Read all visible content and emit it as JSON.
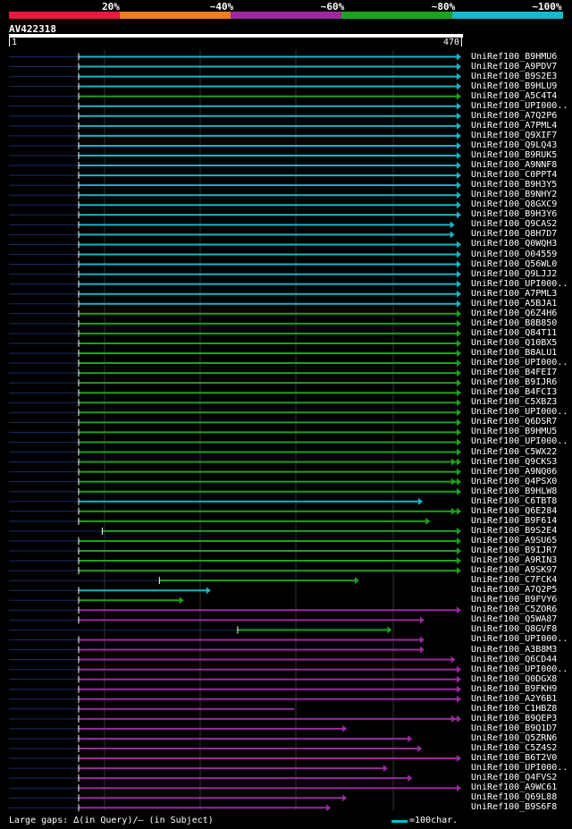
{
  "legend": [
    {
      "label": "20%",
      "color": "#e8193c"
    },
    {
      "label": "~40%",
      "color": "#f07d1e"
    },
    {
      "label": "~60%",
      "color": "#9b2aa0"
    },
    {
      "label": "~80%",
      "color": "#1ea11e"
    },
    {
      "label": "~100%",
      "color": "#18b8c8"
    }
  ],
  "query": {
    "id": "AV422318",
    "start": "1",
    "end": "470",
    "length": 470
  },
  "colors": {
    "cyan": "#19b5c6",
    "green": "#1ea11e",
    "purple": "#9b2aa0",
    "dash": "#1c2a66",
    "grid": "#333333"
  },
  "hits": [
    {
      "name": "UniRef100_B9HMU6",
      "c": "cyan",
      "s": 1,
      "e": 470,
      "arrow": 1,
      "gaps": []
    },
    {
      "name": "UniRef100_A9PDV7",
      "c": "cyan",
      "s": 1,
      "e": 470,
      "arrow": 1,
      "gaps": []
    },
    {
      "name": "UniRef100_B9S2E3",
      "c": "cyan",
      "s": 1,
      "e": 470,
      "arrow": 1,
      "gaps": []
    },
    {
      "name": "UniRef100_B9HLU9",
      "c": "cyan",
      "s": 1,
      "e": 470,
      "arrow": 1,
      "gaps": []
    },
    {
      "name": "UniRef100_A5C4T4",
      "c": "green",
      "s": 1,
      "e": 470,
      "arrow": 1,
      "gaps": []
    },
    {
      "name": "UniRef100_UPI000..",
      "c": "cyan",
      "s": 1,
      "e": 470,
      "arrow": 1,
      "gaps": []
    },
    {
      "name": "UniRef100_A7Q2P6",
      "c": "cyan",
      "s": 1,
      "e": 470,
      "arrow": 1,
      "gaps": []
    },
    {
      "name": "UniRef100_A7PML4",
      "c": "cyan",
      "s": 1,
      "e": 470,
      "arrow": 1,
      "gaps": []
    },
    {
      "name": "UniRef100_Q9XIF7",
      "c": "cyan",
      "s": 1,
      "e": 470,
      "arrow": 1,
      "gaps": []
    },
    {
      "name": "UniRef100_Q9LQ43",
      "c": "cyan",
      "s": 1,
      "e": 470,
      "arrow": 1,
      "gaps": []
    },
    {
      "name": "UniRef100_B9RUK5",
      "c": "cyan",
      "s": 1,
      "e": 470,
      "arrow": 1,
      "gaps": []
    },
    {
      "name": "UniRef100_A9NNF8",
      "c": "cyan",
      "s": 1,
      "e": 470,
      "arrow": 1,
      "gaps": []
    },
    {
      "name": "UniRef100_C0PPT4",
      "c": "cyan",
      "s": 1,
      "e": 470,
      "arrow": 1,
      "gaps": []
    },
    {
      "name": "UniRef100_B9H3Y5",
      "c": "cyan",
      "s": 1,
      "e": 470,
      "arrow": 1,
      "gaps": []
    },
    {
      "name": "UniRef100_B9NHY2",
      "c": "cyan",
      "s": 1,
      "e": 470,
      "arrow": 1,
      "gaps": []
    },
    {
      "name": "UniRef100_Q8GXC9",
      "c": "cyan",
      "s": 1,
      "e": 470,
      "arrow": 1,
      "gaps": []
    },
    {
      "name": "UniRef100_B9H3Y6",
      "c": "cyan",
      "s": 1,
      "e": 470,
      "arrow": 1,
      "gaps": []
    },
    {
      "name": "UniRef100_Q9CAS2",
      "c": "cyan",
      "s": 1,
      "e": 462,
      "arrow": 1,
      "gaps": []
    },
    {
      "name": "UniRef100_Q8H7D7",
      "c": "cyan",
      "s": 1,
      "e": 462,
      "arrow": 1,
      "gaps": []
    },
    {
      "name": "UniRef100_Q0WQH3",
      "c": "cyan",
      "s": 1,
      "e": 470,
      "arrow": 1,
      "gaps": []
    },
    {
      "name": "UniRef100_O04559",
      "c": "cyan",
      "s": 1,
      "e": 470,
      "arrow": 1,
      "gaps": []
    },
    {
      "name": "UniRef100_Q56WL0",
      "c": "cyan",
      "s": 1,
      "e": 470,
      "arrow": 1,
      "gaps": []
    },
    {
      "name": "UniRef100_Q9LJJ2",
      "c": "cyan",
      "s": 1,
      "e": 470,
      "arrow": 1,
      "gaps": []
    },
    {
      "name": "UniRef100_UPI000..",
      "c": "cyan",
      "s": 1,
      "e": 470,
      "arrow": 1,
      "gaps": []
    },
    {
      "name": "UniRef100_A7PML3",
      "c": "cyan",
      "s": 1,
      "e": 470,
      "arrow": 1,
      "gaps": []
    },
    {
      "name": "UniRef100_A5BJA1",
      "c": "cyan",
      "s": 1,
      "e": 470,
      "arrow": 1,
      "gaps": []
    },
    {
      "name": "UniRef100_Q6Z4H6",
      "c": "green",
      "s": 1,
      "e": 470,
      "arrow": 1,
      "gaps": []
    },
    {
      "name": "UniRef100_B8B850",
      "c": "green",
      "s": 1,
      "e": 470,
      "arrow": 1,
      "gaps": []
    },
    {
      "name": "UniRef100_Q84T11",
      "c": "green",
      "s": 1,
      "e": 470,
      "arrow": 1,
      "gaps": []
    },
    {
      "name": "UniRef100_Q10BX5",
      "c": "green",
      "s": 1,
      "e": 470,
      "arrow": 1,
      "gaps": []
    },
    {
      "name": "UniRef100_B8ALU1",
      "c": "green",
      "s": 1,
      "e": 470,
      "arrow": 1,
      "gaps": []
    },
    {
      "name": "UniRef100_UPI000..",
      "c": "green",
      "s": 1,
      "e": 470,
      "arrow": 1,
      "gaps": []
    },
    {
      "name": "UniRef100_B4FEI7",
      "c": "green",
      "s": 1,
      "e": 470,
      "arrow": 1,
      "gaps": []
    },
    {
      "name": "UniRef100_B9IJR6",
      "c": "green",
      "s": 1,
      "e": 470,
      "arrow": 1,
      "gaps": []
    },
    {
      "name": "UniRef100_B4FCI3",
      "c": "green",
      "s": 1,
      "e": 470,
      "arrow": 1,
      "gaps": []
    },
    {
      "name": "UniRef100_C5XBZ3",
      "c": "green",
      "s": 1,
      "e": 470,
      "arrow": 1,
      "gaps": []
    },
    {
      "name": "UniRef100_UPI000..",
      "c": "green",
      "s": 1,
      "e": 470,
      "arrow": 1,
      "gaps": []
    },
    {
      "name": "UniRef100_Q6DSR7",
      "c": "green",
      "s": 1,
      "e": 470,
      "arrow": 1,
      "gaps": []
    },
    {
      "name": "UniRef100_B9HMU5",
      "c": "green",
      "s": 1,
      "e": 470,
      "arrow": 1,
      "gaps": []
    },
    {
      "name": "UniRef100_UPI000..",
      "c": "green",
      "s": 1,
      "e": 470,
      "arrow": 1,
      "gaps": []
    },
    {
      "name": "UniRef100_C5WX22",
      "c": "green",
      "s": 1,
      "e": 470,
      "arrow": 1,
      "gaps": []
    },
    {
      "name": "UniRef100_Q9CKS3",
      "c": "green",
      "s": 1,
      "e": 470,
      "arrow": 2,
      "gaps": []
    },
    {
      "name": "UniRef100_A9NQ06",
      "c": "green",
      "s": 1,
      "e": 470,
      "arrow": 1,
      "gaps": []
    },
    {
      "name": "UniRef100_Q4PSX0",
      "c": "green",
      "s": 1,
      "e": 470,
      "arrow": 2,
      "gaps": []
    },
    {
      "name": "UniRef100_B9HLW8",
      "c": "green",
      "s": 1,
      "e": 470,
      "arrow": 1,
      "gaps": []
    },
    {
      "name": "UniRef100_C6TBT8",
      "c": "cyan",
      "s": 1,
      "e": 423,
      "arrow": 1,
      "gaps": []
    },
    {
      "name": "UniRef100_Q6E284",
      "c": "green",
      "s": 1,
      "e": 470,
      "arrow": 2,
      "gaps": []
    },
    {
      "name": "UniRef100_B9F614",
      "c": "green",
      "s": 1,
      "e": 432,
      "arrow": 1,
      "gaps": []
    },
    {
      "name": "UniRef100_B9S2E4",
      "c": "green",
      "s": 30,
      "e": 470,
      "arrow": 1,
      "gaps": []
    },
    {
      "name": "UniRef100_A9SU65",
      "c": "green",
      "s": 1,
      "e": 470,
      "arrow": 1,
      "gaps": []
    },
    {
      "name": "UniRef100_B9IJR7",
      "c": "green",
      "s": 1,
      "e": 470,
      "arrow": 1,
      "gaps": []
    },
    {
      "name": "UniRef100_A9RIN3",
      "c": "green",
      "s": 1,
      "e": 470,
      "arrow": 1,
      "gaps": []
    },
    {
      "name": "UniRef100_A9SK97",
      "c": "green",
      "s": 1,
      "e": 470,
      "arrow": 1,
      "gaps": []
    },
    {
      "name": "UniRef100_C7FCK4",
      "c": "green",
      "s": 100,
      "e": 345,
      "arrow": 1,
      "gaps": []
    },
    {
      "name": "UniRef100_A7Q2P5",
      "c": "cyan",
      "s": 1,
      "e": 163,
      "arrow": 1,
      "gaps": []
    },
    {
      "name": "UniRef100_B9FVY6",
      "c": "green",
      "s": 1,
      "e": 130,
      "arrow": 1,
      "gaps": []
    },
    {
      "name": "UniRef100_C5ZOR6",
      "c": "purple",
      "s": 1,
      "e": 470,
      "arrow": 1,
      "gaps": []
    },
    {
      "name": "UniRef100_Q5WA87",
      "c": "purple",
      "s": 1,
      "e": 425,
      "arrow": 1,
      "gaps": []
    },
    {
      "name": "UniRef100_Q8GVF8",
      "c": "green",
      "s": 196,
      "e": 385,
      "arrow": 1,
      "gaps": []
    },
    {
      "name": "UniRef100_UPI000..",
      "c": "purple",
      "s": 1,
      "e": 425,
      "arrow": 1,
      "gaps": []
    },
    {
      "name": "UniRef100_A3B8M3",
      "c": "purple",
      "s": 1,
      "e": 425,
      "arrow": 1,
      "gaps": []
    },
    {
      "name": "UniRef100_Q6CD44",
      "c": "purple",
      "s": 1,
      "e": 463,
      "arrow": 1,
      "gaps": []
    },
    {
      "name": "UniRef100_UPI000..",
      "c": "purple",
      "s": 1,
      "e": 470,
      "arrow": 1,
      "gaps": []
    },
    {
      "name": "UniRef100_Q0DGX8",
      "c": "purple",
      "s": 1,
      "e": 470,
      "arrow": 1,
      "gaps": []
    },
    {
      "name": "UniRef100_B9FKH9",
      "c": "purple",
      "s": 1,
      "e": 470,
      "arrow": 1,
      "gaps": []
    },
    {
      "name": "UniRef100_A2Y6B1",
      "c": "purple",
      "s": 1,
      "e": 470,
      "arrow": 1,
      "gaps": []
    },
    {
      "name": "UniRef100_C1HBZ8",
      "c": "purple",
      "s": 1,
      "e": 270,
      "arrow": 0,
      "gaps": []
    },
    {
      "name": "UniRef100_B9QEP3",
      "c": "purple",
      "s": 1,
      "e": 470,
      "arrow": 2,
      "gaps": []
    },
    {
      "name": "UniRef100_B9Q1D7",
      "c": "purple",
      "s": 1,
      "e": 330,
      "arrow": 1,
      "gaps": []
    },
    {
      "name": "UniRef100_Q5ZRN6",
      "c": "purple",
      "s": 1,
      "e": 410,
      "arrow": 1,
      "gaps": []
    },
    {
      "name": "UniRef100_C5Z4S2",
      "c": "purple",
      "s": 1,
      "e": 422,
      "arrow": 1,
      "gaps": []
    },
    {
      "name": "UniRef100_B6T2V0",
      "c": "purple",
      "s": 1,
      "e": 470,
      "arrow": 1,
      "gaps": []
    },
    {
      "name": "UniRef100_UPI000..",
      "c": "purple",
      "s": 1,
      "e": 380,
      "arrow": 1,
      "gaps": []
    },
    {
      "name": "UniRef100_Q4FVS2",
      "c": "purple",
      "s": 1,
      "e": 410,
      "arrow": 1,
      "gaps": []
    },
    {
      "name": "UniRef100_A9WC61",
      "c": "purple",
      "s": 1,
      "e": 470,
      "arrow": 1,
      "gaps": []
    },
    {
      "name": "UniRef100_Q69L88",
      "c": "purple",
      "s": 1,
      "e": 330,
      "arrow": 1,
      "gaps": []
    },
    {
      "name": "UniRef100_B9S6F8",
      "c": "purple",
      "s": 1,
      "e": 310,
      "arrow": 1,
      "gaps": []
    }
  ],
  "footer": {
    "gaps_text": "Large gaps: ∆(in Query)/– (in Subject)",
    "scale_text": "=100char."
  }
}
